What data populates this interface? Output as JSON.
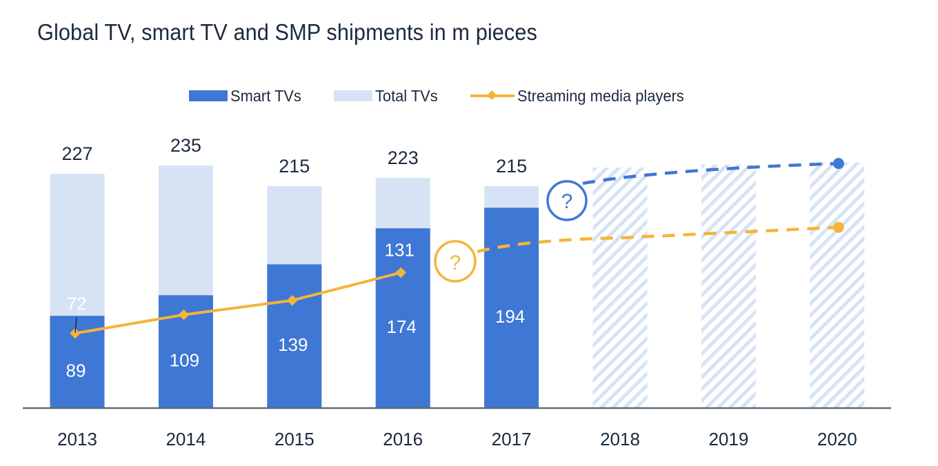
{
  "chart_data": {
    "type": "bar",
    "title": "Global TV, smart TV and SMP shipments in m pieces",
    "xlabel": "",
    "ylabel": "",
    "ylim": [
      0,
      240
    ],
    "grid": false,
    "legend_position": "top-center",
    "categories": [
      "2013",
      "2014",
      "2015",
      "2016",
      "2017",
      "2018",
      "2019",
      "2020"
    ],
    "series": [
      {
        "name": "Smart TVs",
        "type": "bar",
        "color": "#3f77d4",
        "values": [
          89,
          109,
          139,
          174,
          194,
          null,
          null,
          null
        ],
        "labels": [
          "89",
          "109",
          "139",
          "174",
          "194",
          null,
          null,
          null
        ]
      },
      {
        "name": "Total TVs",
        "type": "bar",
        "color": "#d6e3f4",
        "values": [
          227,
          235,
          215,
          223,
          215,
          null,
          null,
          null
        ],
        "labels": [
          "227",
          "235",
          "215",
          "223",
          "215",
          null,
          null,
          null
        ]
      },
      {
        "name": "Streaming media players",
        "type": "line",
        "color": "#f4b43c",
        "values": [
          72,
          90,
          104,
          131,
          null,
          null,
          null,
          null
        ],
        "labels": [
          "72",
          null,
          null,
          "131",
          null,
          null,
          null,
          null
        ]
      }
    ],
    "forecast": {
      "years": [
        "2018",
        "2019",
        "2020"
      ],
      "hatched_bar_total_approx": [
        233,
        236,
        238
      ],
      "smart_tv_dashed_line": {
        "from_year": "2017",
        "to_year": "2020",
        "start_value_approx": 225,
        "end_value_approx": 237
      },
      "smp_dashed_line": {
        "from_year": "2016",
        "to_year": "2020",
        "start_value_approx": 145,
        "end_value_approx": 175
      },
      "question_markers": [
        {
          "label": "?",
          "series": "Smart TVs",
          "color": "#3f77d4"
        },
        {
          "label": "?",
          "series": "Streaming media players",
          "color": "#f4b43c"
        }
      ]
    }
  },
  "legend": [
    {
      "label": "Smart TVs",
      "kind": "bar-swatch"
    },
    {
      "label": "Total TVs",
      "kind": "bar-swatch"
    },
    {
      "label": "Streaming media players",
      "kind": "line-diamond"
    }
  ],
  "colors": {
    "smart": "#3f77d4",
    "total": "#d6e3f4",
    "smp": "#f4b43c",
    "axis": "#5f6b78",
    "text": "#1b2a3d",
    "hatch": "#d6e3f4"
  }
}
